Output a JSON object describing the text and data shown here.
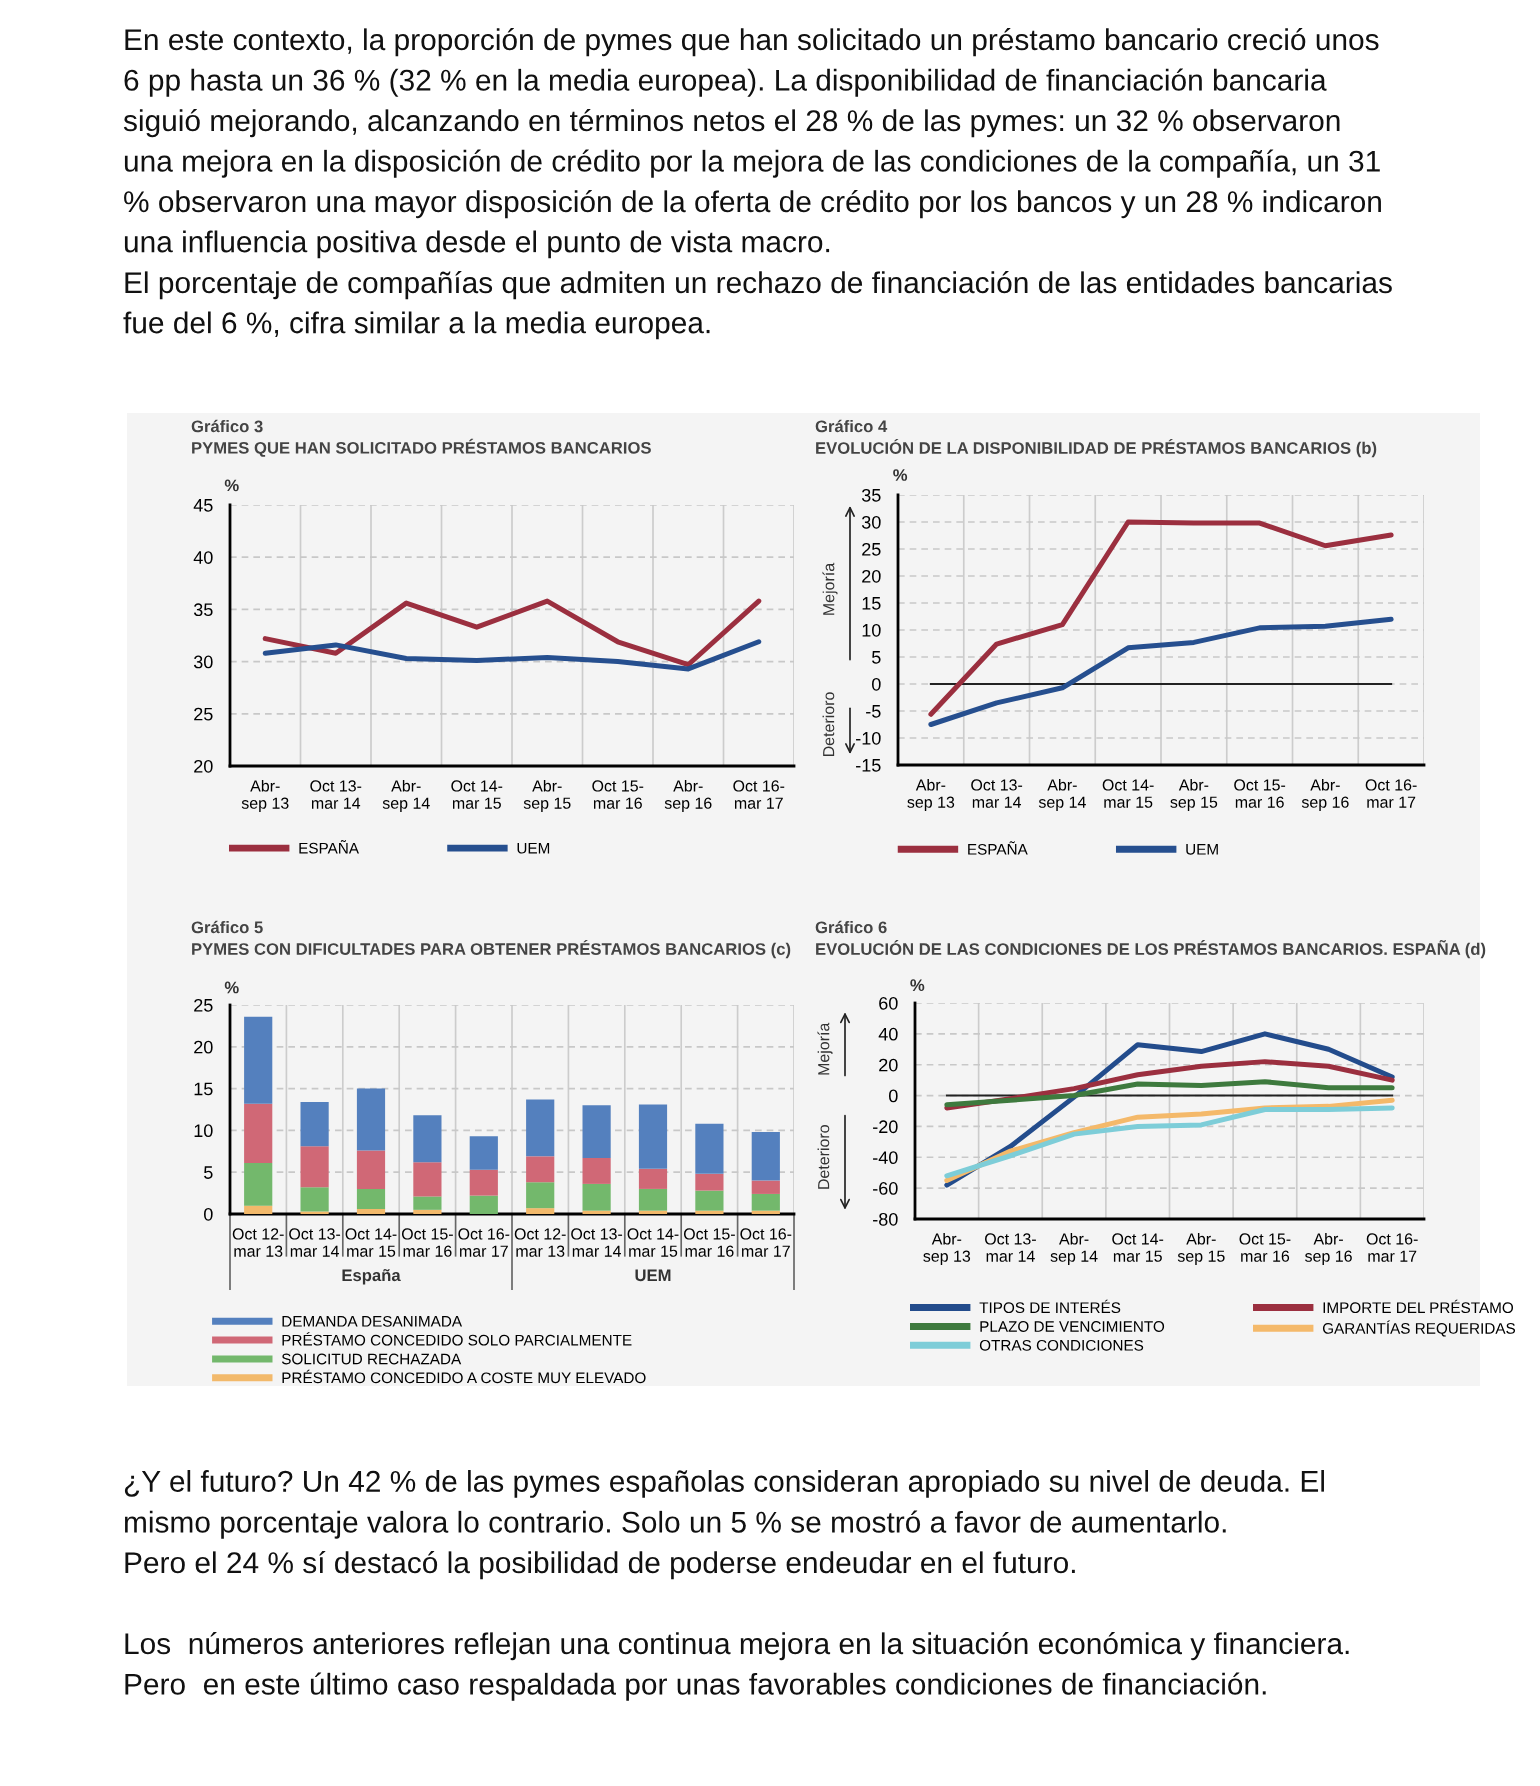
{
  "chart_data": [
    {
      "type": "other",
      "annotations": [
        "En este contexto, la proporción de pymes que han solicitado un préstamo bancario creció unos",
        "6 pp hasta un 36 % (32 % en la media europea). La disponibilidad de financiación bancaria",
        "siguió mejorando, alcanzando en términos netos el 28 % de las pymes: un 32 % observaron",
        "una mejora en la disposición de crédito por la mejora de las condiciones de la compañía, un 31",
        "% observaron una mayor disposición de la oferta de crédito por los bancos y un 28 % indicaron",
        "una influencia positiva desde el punto de vista macro.",
        "El porcentaje de compañías que admiten un rechazo de financiación de las entidades bancarias",
        "fue del 6 %, cifra similar a la media europea."
      ]
    },
    {
      "type": "line",
      "title": "Gráfico 3",
      "subtitle": "PYMES QUE HAN SOLICITADO PRÉSTAMOS BANCARIOS",
      "ylabel": "%",
      "categories": [
        "Abr-\nsep 13",
        "Oct 13-\nmar 14",
        "Abr-\nsep 14",
        "Oct 14-\nmar 15",
        "Abr-\nsep 15",
        "Oct 15-\nmar 16",
        "Abr-\nsep 16",
        "Oct 16-\nmar 17"
      ],
      "series": [
        {
          "name": "ESPAÑA",
          "color": "#9b2f3f",
          "values": [
            32.2,
            30.8,
            35.6,
            33.3,
            35.8,
            31.9,
            29.7,
            35.8
          ]
        },
        {
          "name": "UEM",
          "color": "#264f8f",
          "values": [
            30.8,
            31.6,
            30.3,
            30.1,
            30.4,
            30.0,
            29.3,
            31.9
          ]
        }
      ],
      "ylim": [
        20,
        45
      ],
      "yticks": [
        20,
        25,
        30,
        35,
        40,
        45
      ],
      "grid": true,
      "legend": "bottom"
    },
    {
      "type": "line",
      "title": "Gráfico 4",
      "subtitle": "EVOLUCIÓN DE LA DISPONIBILIDAD DE PRÉSTAMOS BANCARIOS (b)",
      "ylabel": "%",
      "categories": [
        "Abr-\nsep 13",
        "Oct 13-\nmar 14",
        "Abr-\nsep 14",
        "Oct 14-\nmar 15",
        "Abr-\nsep 15",
        "Oct 15-\nmar 16",
        "Abr-\nsep 16",
        "Oct 16-\nmar 17"
      ],
      "series": [
        {
          "name": "ESPAÑA",
          "color": "#9b2f3f",
          "values": [
            -5.6,
            7.4,
            11,
            30,
            29.8,
            29.8,
            25.6,
            27.6
          ]
        },
        {
          "name": "UEM",
          "color": "#264f8f",
          "values": [
            -7.5,
            -3.5,
            -0.7,
            6.7,
            7.7,
            10.4,
            10.7,
            12
          ]
        }
      ],
      "ylim": [
        -15,
        35
      ],
      "yticks": [
        -15,
        -10,
        -5,
        0,
        5,
        10,
        15,
        20,
        25,
        30,
        35
      ],
      "grid": true,
      "legend": "bottom",
      "ref_lines": [
        {
          "axis": "y",
          "value": 0,
          "color": "#222222"
        }
      ],
      "annotations": [
        "Mejoría",
        "Deterioro"
      ]
    },
    {
      "type": "bar",
      "stacked": true,
      "title": "Gráfico 5",
      "subtitle": "PYMES CON DIFICULTADES PARA OBTENER PRÉSTAMOS BANCARIOS (c)",
      "ylabel": "%",
      "categories": [
        "Oct 12-\nmar 13",
        "Oct 13-\nmar 14",
        "Oct 14-\nmar 15",
        "Oct 15-\nmar 16",
        "Oct 16-\nmar 17",
        "Oct 12-\nmar 13",
        "Oct 13-\nmar 14",
        "Oct 14-\nmar 15",
        "Oct 15-\nmar 16",
        "Oct 16-\nmar 17"
      ],
      "series": [
        {
          "name": "PRÉSTAMO CONCEDIDO A COSTE MUY ELEVADO",
          "color": "#f2b96b",
          "values": [
            1.0,
            0.3,
            0.6,
            0.5,
            0.0,
            0.7,
            0.4,
            0.4,
            0.4,
            0.4
          ]
        },
        {
          "name": "SOLICITUD RECHAZADA",
          "color": "#73b86c",
          "values": [
            5.1,
            2.9,
            2.4,
            1.6,
            2.2,
            3.1,
            3.2,
            2.6,
            2.4,
            2.0
          ]
        },
        {
          "name": "PRÉSTAMO CONCEDIDO SOLO PARCIALMENTE",
          "color": "#d06876",
          "values": [
            7.1,
            4.9,
            4.6,
            4.1,
            3.1,
            3.1,
            3.1,
            2.4,
            2.0,
            1.6
          ]
        },
        {
          "name": "DEMANDA DESANIMADA",
          "color": "#5480be",
          "values": [
            10.4,
            5.3,
            7.4,
            5.6,
            4.0,
            6.8,
            6.3,
            7.7,
            6.0,
            5.8
          ]
        }
      ],
      "ylim": [
        0,
        25
      ],
      "yticks": [
        0,
        5,
        10,
        15,
        20,
        25
      ],
      "grid": true,
      "legend": "bottom",
      "annotations": [
        "España",
        "UEM"
      ]
    },
    {
      "type": "line",
      "title": "Gráfico 6",
      "subtitle": "EVOLUCIÓN DE LAS CONDICIONES DE LOS PRÉSTAMOS BANCARIOS. ESPAÑA (d)",
      "ylabel": "%",
      "categories": [
        "Abr-\nsep 13",
        "Oct 13-\nmar 14",
        "Abr-\nsep 14",
        "Oct 14-\nmar 15",
        "Abr-\nsep 15",
        "Oct 15-\nmar 16",
        "Abr-\nsep 16",
        "Oct 16-\nmar 17"
      ],
      "series": [
        {
          "name": "TIPOS DE INTERÉS",
          "color": "#234c8c",
          "values": [
            -58,
            -33,
            -1,
            33,
            28.5,
            40,
            30,
            12
          ]
        },
        {
          "name": "IMPORTE DEL PRÉSTAMO",
          "color": "#9b2f3f",
          "values": [
            -8,
            -2,
            4.5,
            13.5,
            19,
            22,
            19,
            10
          ]
        },
        {
          "name": "PLAZO DE VENCIMIENTO",
          "color": "#3e7a3e",
          "values": [
            -6,
            -3,
            0,
            7.5,
            6.5,
            9,
            5,
            5
          ]
        },
        {
          "name": "GARANTÍAS REQUERIDAS",
          "color": "#f4b96a",
          "values": [
            -55,
            -36,
            -24,
            -14,
            -12,
            -8,
            -7,
            -3
          ]
        },
        {
          "name": "OTRAS CONDICIONES",
          "color": "#7dcdd8",
          "values": [
            -52,
            -39,
            -25,
            -20,
            -19,
            -9,
            -9,
            -8
          ]
        }
      ],
      "ylim": [
        -80,
        60
      ],
      "yticks": [
        -80,
        -60,
        -40,
        -20,
        0,
        20,
        40,
        60
      ],
      "grid": true,
      "legend": "bottom",
      "ref_lines": [
        {
          "axis": "y",
          "value": 0,
          "color": "#222222"
        }
      ],
      "annotations": [
        "Mejoría",
        "Deterioro"
      ]
    },
    {
      "type": "other",
      "annotations": [
        "¿Y el futuro? Un 42 % de las pymes españolas consideran apropiado su nivel de deuda. El",
        "mismo porcentaje valora lo contrario. Solo un 5 % se mostró a favor de aumentarlo.",
        "Pero el 24 % sí destacó la posibilidad de poderse endeudar en el futuro."
      ]
    },
    {
      "type": "other",
      "annotations": [
        "Los  números anteriores reflejan una continua mejora en la situación económica y financiera.",
        "Pero  en este último caso respaldada por unas favorables condiciones de financiación."
      ]
    }
  ]
}
